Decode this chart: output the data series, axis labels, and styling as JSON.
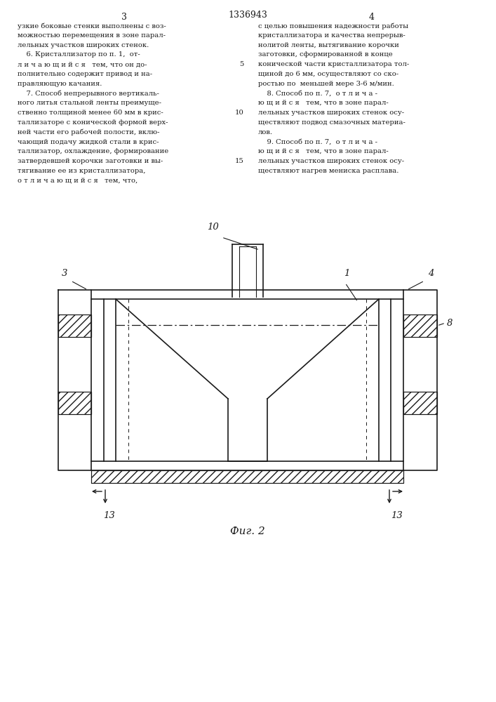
{
  "page_width": 7.07,
  "page_height": 10.0,
  "bg_color": "#ffffff",
  "line_color": "#1a1a1a",
  "text_color": "#1a1a1a",
  "left_column_lines": [
    "узкие боковые стенки выполнены с воз-",
    "можностью перемещения в зоне парал-",
    "лельных участков широких стенок.",
    "    6. Кристаллизатор по п. 1,  от-",
    "л и ч а ю щ и й с я   тем, что он до-",
    "полнительно содержит привод и на-",
    "правляющую качания.",
    "    7. Способ непрерывного вертикаль-",
    "ного литья стальной ленты преимуще-",
    "ственно толщиной менее 60 мм в крис-",
    "таллизаторе с конической формой верх-",
    "ней части его рабочей полости, вклю-",
    "чающий подачу жидкой стали в крис-",
    "таллизатор, охлаждение, формирование",
    "затвердевшей корочки заготовки и вы-",
    "тягивание ее из кристаллизатора,",
    "о т л и ч а ю щ и й с я   тем, что,"
  ],
  "right_column_lines": [
    "с целью повышения надежности работы",
    "кристаллизатора и качества непрерыв-",
    "нолитой ленты, вытягивание корочки",
    "заготовки, сформированной в конце",
    "конической части кристаллизатора тол-",
    "щиной до 6 мм, осуществляют со ско-",
    "ростью по  меньшей мере 3-6 м/мин.",
    "    8. Способ по п. 7,  о т л и ч а -",
    "ю щ и й с я   тем, что в зоне парал-",
    "лельных участков широких стенок осу-",
    "ществляют подвод смазочных материа-",
    "лов.",
    "    9. Способ по п. 7,  о т л и ч а -",
    "ю щ и й с я   тем, что в зоне парал-",
    "лельных участков широких стенок осу-",
    "ществляют нагрев мениска расплава."
  ],
  "fig_caption": "Фиг. 2"
}
